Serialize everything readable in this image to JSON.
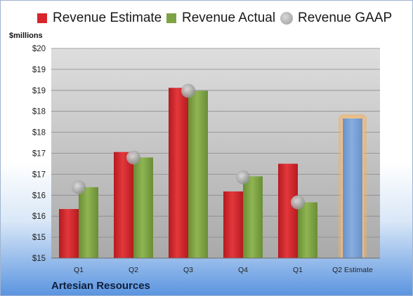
{
  "chart_data": {
    "type": "bar",
    "title": "",
    "units_label": "$millions",
    "company": "Artesian Resources",
    "categories": [
      "Q1",
      "Q2",
      "Q3",
      "Q4",
      "Q1",
      "Q2 Estimate"
    ],
    "y_tick_labels": [
      "$15",
      "$15",
      "$16",
      "$16",
      "$17",
      "$17",
      "$18",
      "$18",
      "$19",
      "$19",
      "$20"
    ],
    "ylim": [
      15,
      20
    ],
    "grid": true,
    "legend_position": "top",
    "series": [
      {
        "name": "Revenue Estimate",
        "color": "#d7262b",
        "kind": "bar",
        "values": [
          16.17,
          17.53,
          19.06,
          16.59,
          17.25,
          null
        ]
      },
      {
        "name": "Revenue Actual",
        "color": "#7ea344",
        "kind": "bar",
        "values": [
          16.69,
          17.4,
          18.99,
          16.95,
          16.33,
          18.33
        ],
        "highlight_last": true,
        "highlight_color": "#7aa3d8"
      },
      {
        "name": "Revenue GAAP",
        "color": "#a6a6a6",
        "kind": "marker",
        "values": [
          16.69,
          17.4,
          18.99,
          16.93,
          16.33,
          null
        ]
      }
    ]
  }
}
